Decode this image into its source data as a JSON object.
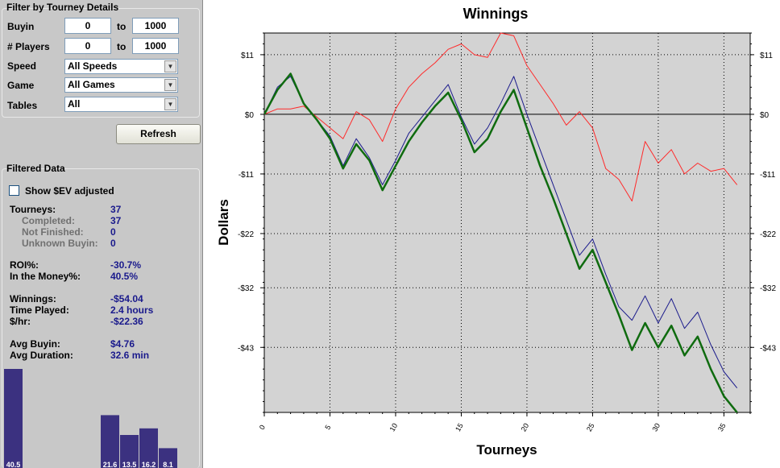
{
  "filter": {
    "title": "Filter by Tourney Details",
    "buyin": {
      "label": "Buyin",
      "from": "0",
      "to": "1000"
    },
    "players": {
      "label": "# Players",
      "from": "0",
      "to": "1000"
    },
    "to_label": "to",
    "speed": {
      "label": "Speed",
      "value": "All Speeds"
    },
    "game": {
      "label": "Game",
      "value": "All Games"
    },
    "tables": {
      "label": "Tables",
      "value": "All"
    },
    "refresh_label": "Refresh"
  },
  "filtered": {
    "title": "Filtered Data",
    "ev_label": "Show $EV adjusted",
    "stats": [
      {
        "label": "Tourneys:",
        "value": "37",
        "sub": false
      },
      {
        "label": "Completed:",
        "value": "37",
        "sub": true
      },
      {
        "label": "Not Finished:",
        "value": "0",
        "sub": true
      },
      {
        "label": "Unknown Buyin:",
        "value": "0",
        "sub": true
      },
      {
        "label": "ROI%:",
        "value": "-30.7%",
        "sub": false
      },
      {
        "label": "In the Money%:",
        "value": "40.5%",
        "sub": false
      },
      {
        "label": "Winnings:",
        "value": "-$54.04",
        "sub": false
      },
      {
        "label": "Time Played:",
        "value": "2.4 hours",
        "sub": false
      },
      {
        "label": "$/hr:",
        "value": "-$22.36",
        "sub": false
      },
      {
        "label": "Avg Buyin:",
        "value": "$4.76",
        "sub": false
      },
      {
        "label": "Avg Duration:",
        "value": "32.6 min",
        "sub": false
      }
    ],
    "histogram": {
      "color": "#3b3180",
      "bars": [
        {
          "label": "40.5",
          "value": 40.5
        },
        {
          "label": "",
          "value": 0
        },
        {
          "label": "",
          "value": 0
        },
        {
          "label": "",
          "value": 0
        },
        {
          "label": "",
          "value": 0
        },
        {
          "label": "21.6",
          "value": 21.6
        },
        {
          "label": "13.5",
          "value": 13.5
        },
        {
          "label": "16.2",
          "value": 16.2
        },
        {
          "label": "8.1",
          "value": 8.1
        }
      ]
    }
  },
  "chart_data": {
    "type": "line",
    "title": "Winnings",
    "xlabel": "Tourneys",
    "ylabel": "Dollars",
    "xlim": [
      0,
      37
    ],
    "ylim": [
      -55,
      15
    ],
    "x_ticks": [
      0,
      5,
      10,
      15,
      20,
      25,
      30,
      35
    ],
    "y_ticks": [
      {
        "value": 11,
        "label": "$11"
      },
      {
        "value": 0,
        "label": "$0"
      },
      {
        "value": -11,
        "label": "-$11"
      },
      {
        "value": -22,
        "label": "-$22"
      },
      {
        "value": -32,
        "label": "-$32"
      },
      {
        "value": -43,
        "label": "-$43"
      }
    ],
    "grid": true,
    "zero_line": true,
    "plot_background": "#d3d3d3",
    "series": [
      {
        "color": "#ff2a2a",
        "width": 1,
        "values": [
          0,
          1,
          1,
          1.5,
          -0.5,
          -2.5,
          -4.5,
          0.5,
          -1,
          -5,
          1,
          5,
          7.5,
          9.5,
          12,
          13,
          11,
          10.5,
          15,
          14.5,
          9,
          5.5,
          2,
          -2,
          0.5,
          -2.5,
          -10,
          -12,
          -16,
          -5,
          -9,
          -6.5,
          -11,
          -9,
          -10.5,
          -10,
          -13
        ]
      },
      {
        "color": "#1b1b8c",
        "width": 1,
        "values": [
          0,
          5,
          7,
          2,
          -1,
          -4,
          -9.5,
          -4.5,
          -8,
          -13,
          -8.5,
          -3.5,
          -0.5,
          2.5,
          5.5,
          -0.5,
          -5.5,
          -2.5,
          2,
          7,
          0,
          -6.5,
          -13,
          -19.5,
          -26,
          -23,
          -29.5,
          -35.5,
          -38,
          -33.5,
          -38.5,
          -34,
          -39.5,
          -36.5,
          -42.5,
          -47.5,
          -50.5
        ]
      },
      {
        "color": "#0f6b0f",
        "width": 2.5,
        "values": [
          0,
          4.5,
          7.5,
          2,
          -1,
          -4.5,
          -10,
          -5.5,
          -8.5,
          -14,
          -9.5,
          -5,
          -1.5,
          1.5,
          4,
          -1,
          -7,
          -4.5,
          0.5,
          4.5,
          -2.5,
          -9.5,
          -15.5,
          -22,
          -28.5,
          -25,
          -31,
          -37,
          -43.5,
          -38.5,
          -43,
          -39,
          -44.5,
          -41,
          -47,
          -52,
          -55
        ]
      }
    ]
  }
}
